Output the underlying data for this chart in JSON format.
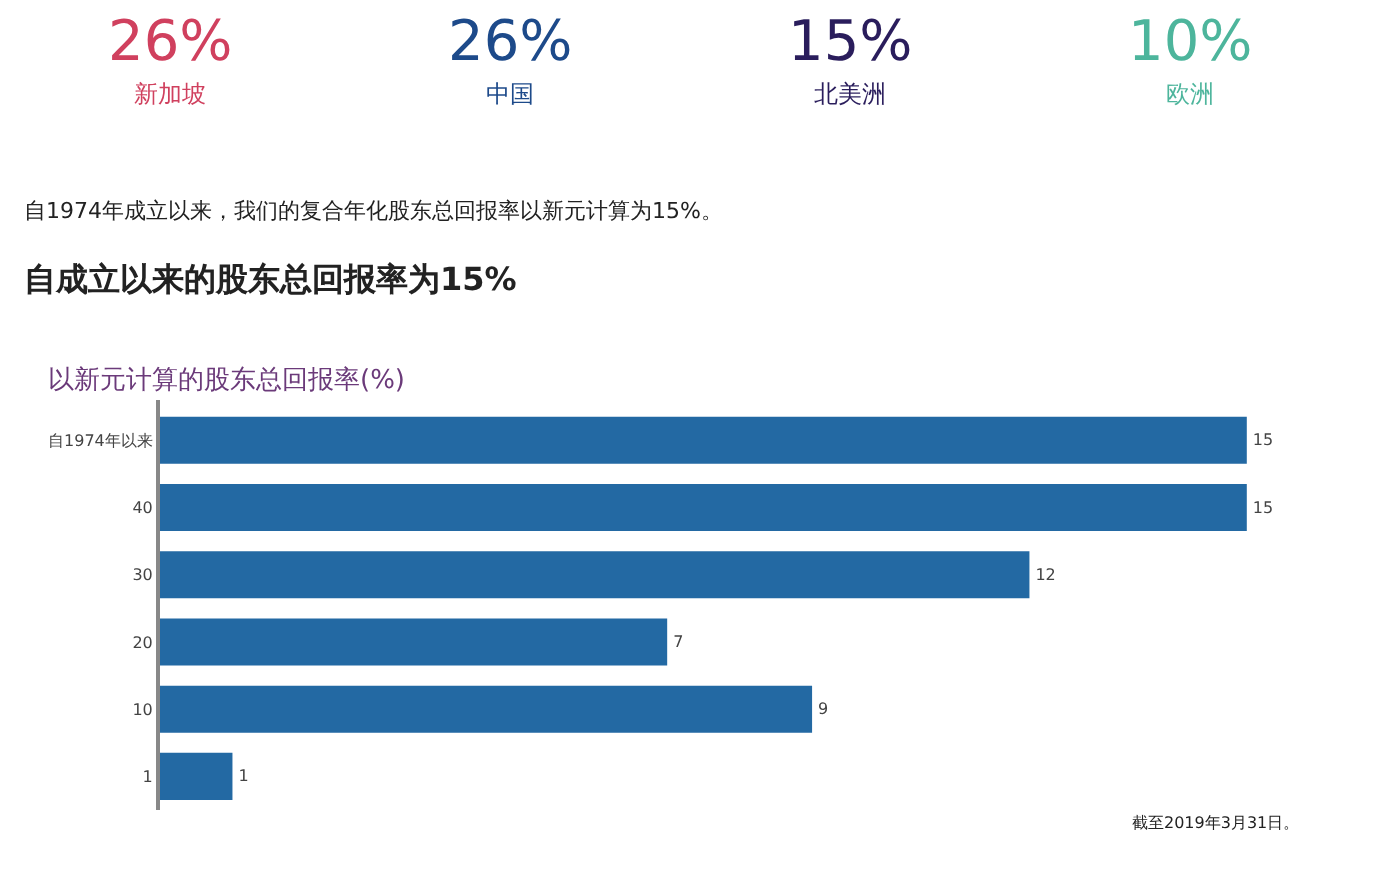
{
  "chart_data": [
    {
      "type": "other",
      "categories": [
        "新加坡",
        "中国",
        "北美洲",
        "欧洲"
      ],
      "value_labels": [
        "26%",
        "26%",
        "15%",
        "10%"
      ],
      "colors": [
        "#d0405e",
        "#1d4a8a",
        "#2a1d5c",
        "#4db59c"
      ]
    },
    {
      "type": "bar",
      "orientation": "horizontal",
      "title": "自成立以来的股东总回报率为15%",
      "subtitle": "以新元计算的股东总回报率(%)",
      "annotations": [
        "自1974年成立以来，我们的复合年化股东总回报率以新元计算为15%。",
        "截至2019年3月31日。"
      ],
      "categories": [
        "自1974年以来",
        "40",
        "30",
        "20",
        "10",
        "1"
      ],
      "values": [
        15,
        15,
        12,
        7,
        9,
        1
      ],
      "color": "#2369a3",
      "data_labels": true,
      "tick_labels": "y"
    }
  ]
}
